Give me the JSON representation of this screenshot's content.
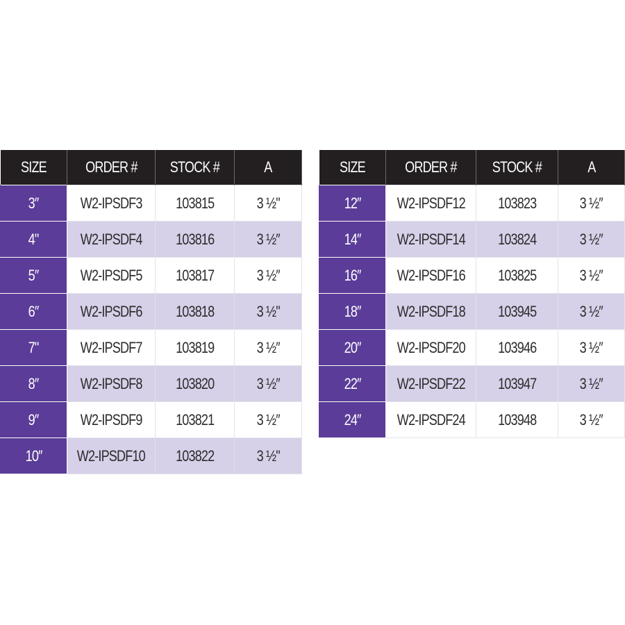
{
  "headers": [
    "SIZE",
    "ORDER #",
    "STOCK #",
    "A"
  ],
  "colors": {
    "header_bg": "#231f20",
    "size_bg": "#5b3c98",
    "alt_row_bg": "#d6d0e8"
  },
  "left_table": [
    {
      "size": "3″",
      "order": "W2-IPSDF3",
      "stock": "103815",
      "a": "3 ½\""
    },
    {
      "size": "4\"",
      "order": "W2-IPSDF4",
      "stock": "103816",
      "a": "3 ½″"
    },
    {
      "size": "5″",
      "order": "W2-IPSDF5",
      "stock": "103817",
      "a": "3 ½″"
    },
    {
      "size": "6″",
      "order": "W2-IPSDF6",
      "stock": "103818",
      "a": "3 ½\""
    },
    {
      "size": "7\"",
      "order": "W2-IPSDF7",
      "stock": "103819",
      "a": "3 ½″"
    },
    {
      "size": "8″",
      "order": "W2-IPSDF8",
      "stock": "103820",
      "a": "3 ½″"
    },
    {
      "size": "9″",
      "order": "W2-IPSDF9",
      "stock": "103821",
      "a": "3 ½″"
    },
    {
      "size": "10″",
      "order": "W2-IPSDF10",
      "stock": "103822",
      "a": "3 ½\""
    }
  ],
  "right_table": [
    {
      "size": "12″",
      "order": "W2-IPSDF12",
      "stock": "103823",
      "a": "3 ½″"
    },
    {
      "size": "14″",
      "order": "W2-IPSDF14",
      "stock": "103824",
      "a": "3 ½″"
    },
    {
      "size": "16″",
      "order": "W2-IPSDF16",
      "stock": "103825",
      "a": "3 ½″"
    },
    {
      "size": "18″",
      "order": "W2-IPSDF18",
      "stock": "103945",
      "a": "3 ½″"
    },
    {
      "size": "20″",
      "order": "W2-IPSDF20",
      "stock": "103946",
      "a": "3 ½″"
    },
    {
      "size": "22″",
      "order": "W2-IPSDF22",
      "stock": "103947",
      "a": "3 ½″"
    },
    {
      "size": "24″",
      "order": "W2-IPSDF24",
      "stock": "103948",
      "a": "3 ½″"
    }
  ]
}
